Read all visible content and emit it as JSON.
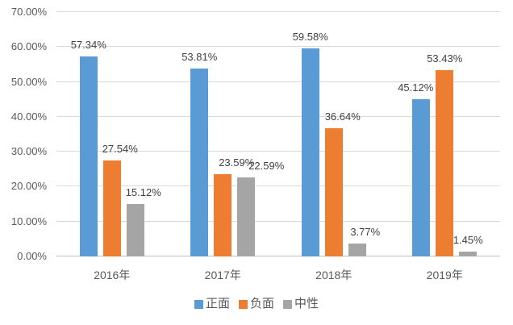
{
  "chart_data": {
    "type": "bar",
    "title": "",
    "categories": [
      "2016年",
      "2017年",
      "2018年",
      "2019年"
    ],
    "series": [
      {
        "name": "正面",
        "color": "#5B9BD5",
        "values": [
          57.34,
          53.81,
          59.58,
          45.12
        ],
        "labels": [
          "57.34%",
          "53.81%",
          "59.58%",
          "45.12%"
        ]
      },
      {
        "name": "负面",
        "color": "#ED7D31",
        "values": [
          27.54,
          23.59,
          36.64,
          53.43
        ],
        "labels": [
          "27.54%",
          "23.59%",
          "36.64%",
          "53.43%"
        ]
      },
      {
        "name": "中性",
        "color": "#A5A5A5",
        "values": [
          15.12,
          22.59,
          3.77,
          1.45
        ],
        "labels": [
          "15.12%",
          "22.59%",
          "3.77%",
          "1.45%"
        ]
      }
    ],
    "ylabel": "",
    "xlabel": "",
    "ylim": [
      0,
      70
    ],
    "y_tick_step": 10,
    "y_tick_labels": [
      "0.00%",
      "10.00%",
      "20.00%",
      "30.00%",
      "40.00%",
      "50.00%",
      "60.00%",
      "70.00%"
    ],
    "grid": true,
    "legend": {
      "position": "bottom",
      "entries": [
        "正面",
        "负面",
        "中性"
      ]
    }
  },
  "colors": {
    "gridline": "#D9D9D9",
    "axis_line": "#BFBFBF",
    "tick_text": "#595959",
    "data_label_text": "#404040",
    "background": "#FFFFFF"
  }
}
